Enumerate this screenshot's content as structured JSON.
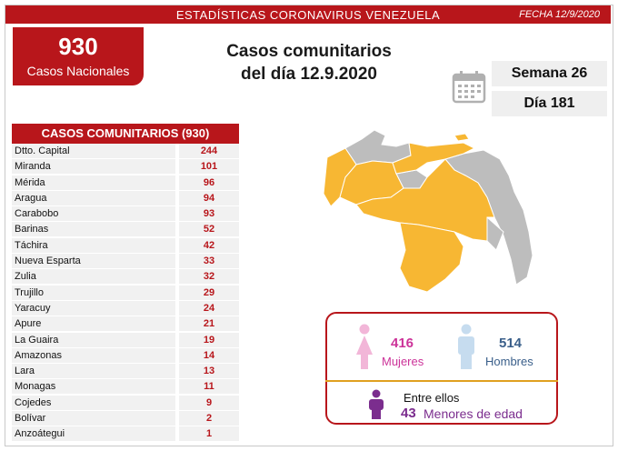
{
  "header": {
    "title": "ESTADÍSTICAS CORONAVIRUS VENEZUELA",
    "date": "FECHA 12/9/2020"
  },
  "total": {
    "number": "930",
    "label": "Casos Nacionales"
  },
  "main_title": {
    "line1": "Casos comunitarios",
    "line2": "del día 12.9.2020"
  },
  "week": "Semana 26",
  "day": "Día 181",
  "table": {
    "heading": "CASOS COMUNITARIOS (930)",
    "rows": [
      {
        "name": "Dtto. Capital",
        "value": "244"
      },
      {
        "name": "Miranda",
        "value": "101"
      },
      {
        "name": "Mérida",
        "value": "96"
      },
      {
        "name": "Aragua",
        "value": "94"
      },
      {
        "name": "Carabobo",
        "value": "93"
      },
      {
        "name": "Barinas",
        "value": "52"
      },
      {
        "name": "Táchira",
        "value": "42"
      },
      {
        "name": "Nueva Esparta",
        "value": "33"
      },
      {
        "name": "Zulia",
        "value": "32"
      },
      {
        "name": "Trujillo",
        "value": "29"
      },
      {
        "name": "Yaracuy",
        "value": "24"
      },
      {
        "name": "Apure",
        "value": "21"
      },
      {
        "name": "La Guaira",
        "value": "19"
      },
      {
        "name": "Amazonas",
        "value": "14"
      },
      {
        "name": "Lara",
        "value": "13"
      },
      {
        "name": "Monagas",
        "value": "11"
      },
      {
        "name": "Cojedes",
        "value": "9"
      },
      {
        "name": "Bolívar",
        "value": "2"
      },
      {
        "name": "Anzoátegui",
        "value": "1"
      }
    ]
  },
  "gender": {
    "women_count": "416",
    "women_label": "Mujeres",
    "men_count": "514",
    "men_label": "Hombres",
    "minors_intro": "Entre ellos",
    "minors_count": "43",
    "minors_label": "Menores de edad"
  },
  "colors": {
    "brand": "#b8161b",
    "map_active": "#f7b733",
    "map_inactive": "#bdbdbd",
    "women": "#cc3399",
    "men": "#3a5f8a",
    "minors": "#7b2d8e"
  },
  "icons": [
    "calendar-icon",
    "woman-icon",
    "man-icon",
    "child-icon"
  ]
}
